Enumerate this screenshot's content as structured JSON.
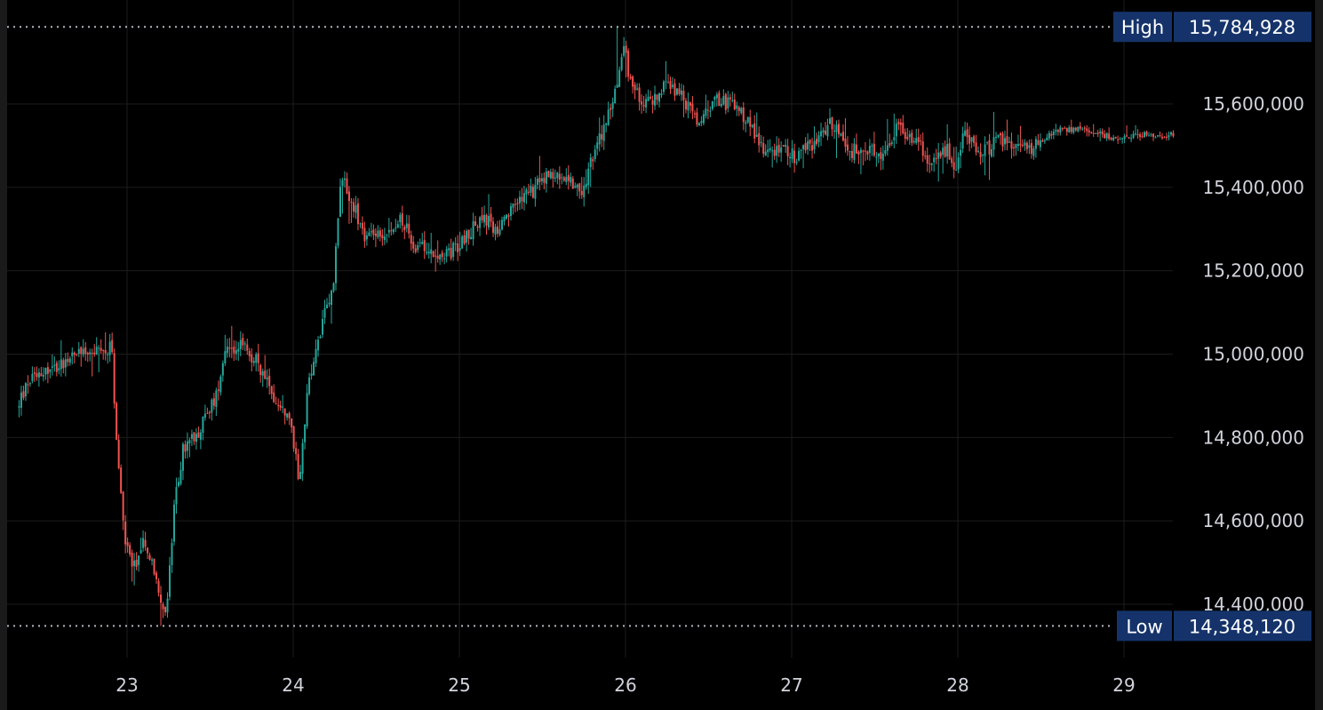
{
  "chart_data": {
    "type": "candlestick",
    "y_axis": {
      "ticks": [
        14400000,
        14600000,
        14800000,
        15000000,
        15200000,
        15400000,
        15600000
      ],
      "tick_labels": [
        "14,400,000",
        "14,600,000",
        "14,800,000",
        "15,000,000",
        "15,200,000",
        "15,400,000",
        "15,600,000"
      ],
      "range": [
        14290000,
        15850000
      ],
      "position": "right"
    },
    "x_axis": {
      "tick_labels": [
        "23",
        "24",
        "25",
        "26",
        "27",
        "28",
        "29"
      ],
      "range": [
        22.35,
        29.3
      ]
    },
    "grid": true,
    "colors": {
      "up": "#26a69a",
      "down": "#ef5350",
      "background": "#000000",
      "grid": "#1c1c1c",
      "badge": "#15336a",
      "text": "#d1d4dc",
      "dotted_line": "#b2b5be"
    },
    "markers": {
      "high": {
        "label": "High",
        "value_text": "15,784,928",
        "value": 15784928
      },
      "low": {
        "label": "Low",
        "value_text": "14,348,120",
        "value": 14348120
      }
    },
    "price_path": [
      [
        22.35,
        14870000
      ],
      [
        22.45,
        14960000
      ],
      [
        22.55,
        14960000
      ],
      [
        22.65,
        14990000
      ],
      [
        22.75,
        15010000
      ],
      [
        22.85,
        15000000
      ],
      [
        22.92,
        15020000
      ],
      [
        22.95,
        14780000
      ],
      [
        23.0,
        14560000
      ],
      [
        23.05,
        14480000
      ],
      [
        23.12,
        14560000
      ],
      [
        23.2,
        14440000
      ],
      [
        23.25,
        14380000
      ],
      [
        23.3,
        14640000
      ],
      [
        23.35,
        14770000
      ],
      [
        23.45,
        14820000
      ],
      [
        23.55,
        14900000
      ],
      [
        23.6,
        15010000
      ],
      [
        23.7,
        15020000
      ],
      [
        23.8,
        14980000
      ],
      [
        23.9,
        14890000
      ],
      [
        24.0,
        14830000
      ],
      [
        24.05,
        14700000
      ],
      [
        24.1,
        14910000
      ],
      [
        24.15,
        15010000
      ],
      [
        24.2,
        15090000
      ],
      [
        24.25,
        15150000
      ],
      [
        24.3,
        15430000
      ],
      [
        24.35,
        15380000
      ],
      [
        24.45,
        15280000
      ],
      [
        24.55,
        15280000
      ],
      [
        24.65,
        15330000
      ],
      [
        24.75,
        15260000
      ],
      [
        24.85,
        15250000
      ],
      [
        24.95,
        15240000
      ],
      [
        25.05,
        15280000
      ],
      [
        25.15,
        15330000
      ],
      [
        25.25,
        15290000
      ],
      [
        25.35,
        15360000
      ],
      [
        25.45,
        15390000
      ],
      [
        25.55,
        15430000
      ],
      [
        25.65,
        15430000
      ],
      [
        25.75,
        15390000
      ],
      [
        25.85,
        15510000
      ],
      [
        25.95,
        15620000
      ],
      [
        26.0,
        15740000
      ],
      [
        26.05,
        15640000
      ],
      [
        26.15,
        15600000
      ],
      [
        26.25,
        15640000
      ],
      [
        26.35,
        15620000
      ],
      [
        26.45,
        15550000
      ],
      [
        26.55,
        15610000
      ],
      [
        26.65,
        15600000
      ],
      [
        26.75,
        15560000
      ],
      [
        26.85,
        15490000
      ],
      [
        26.95,
        15490000
      ],
      [
        27.05,
        15470000
      ],
      [
        27.15,
        15510000
      ],
      [
        27.25,
        15560000
      ],
      [
        27.35,
        15480000
      ],
      [
        27.45,
        15500000
      ],
      [
        27.55,
        15470000
      ],
      [
        27.65,
        15540000
      ],
      [
        27.75,
        15520000
      ],
      [
        27.85,
        15460000
      ],
      [
        27.95,
        15490000
      ],
      [
        28.0,
        15440000
      ],
      [
        28.05,
        15540000
      ],
      [
        28.15,
        15480000
      ],
      [
        28.25,
        15510000
      ],
      [
        28.35,
        15500000
      ],
      [
        28.45,
        15490000
      ],
      [
        28.55,
        15520000
      ],
      [
        28.65,
        15540000
      ],
      [
        28.75,
        15540000
      ],
      [
        28.85,
        15530000
      ],
      [
        28.95,
        15520000
      ],
      [
        29.05,
        15520000
      ],
      [
        29.15,
        15530000
      ],
      [
        29.25,
        15520000
      ],
      [
        29.3,
        15530000
      ]
    ]
  }
}
